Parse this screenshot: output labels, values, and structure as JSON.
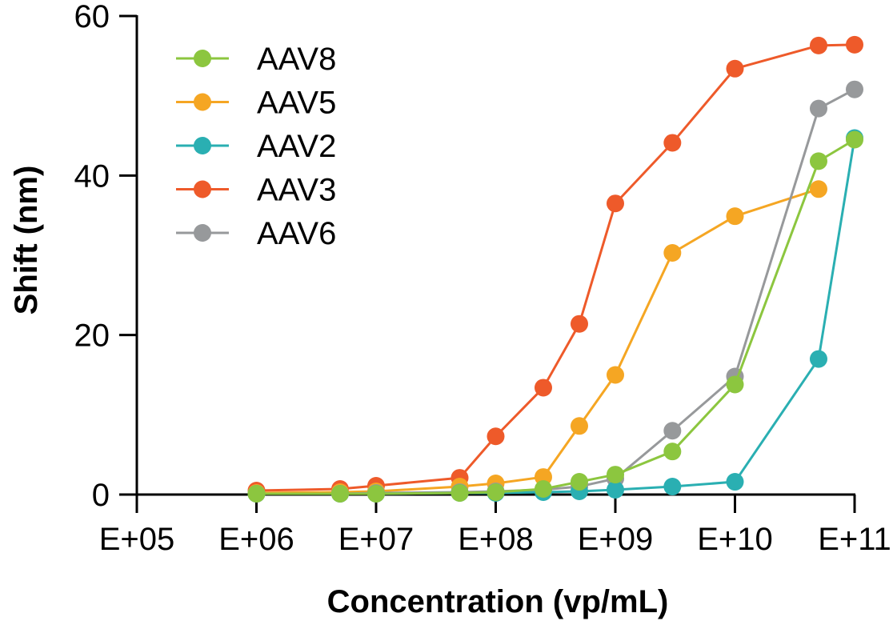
{
  "chart_data": {
    "type": "line",
    "title": "",
    "xlabel": "Concentration (vp/mL)",
    "ylabel": "Shift (nm)",
    "xscale": "log",
    "xlim": [
      100000,
      100000000000
    ],
    "ylim": [
      0,
      60
    ],
    "x_ticks": [
      {
        "value": 100000,
        "label": "E+05"
      },
      {
        "value": 1000000,
        "label": "E+06"
      },
      {
        "value": 10000000,
        "label": "E+07"
      },
      {
        "value": 100000000,
        "label": "E+08"
      },
      {
        "value": 1000000000,
        "label": "E+09"
      },
      {
        "value": 10000000000,
        "label": "E+10"
      },
      {
        "value": 100000000000,
        "label": "E+11"
      }
    ],
    "y_ticks": [
      {
        "value": 0,
        "label": "0"
      },
      {
        "value": 20,
        "label": "20"
      },
      {
        "value": 40,
        "label": "40"
      },
      {
        "value": 60,
        "label": "60"
      }
    ],
    "grid": false,
    "legend_position": "top-left",
    "x": [
      1000000,
      5000000,
      10000000,
      50000000,
      100000000,
      250000000,
      500000000,
      1000000000,
      3000000000,
      10000000000,
      50000000000,
      100000000000
    ],
    "series": [
      {
        "name": "AAV3",
        "color": "#EE5A2A",
        "values": [
          0.5,
          0.7,
          1.1,
          2.1,
          7.3,
          13.4,
          21.4,
          36.5,
          44.1,
          53.4,
          56.3,
          56.4
        ]
      },
      {
        "name": "AAV5",
        "color": "#F5A623",
        "values": [
          0.2,
          0.3,
          0.4,
          1.0,
          1.4,
          2.2,
          8.6,
          15.0,
          30.3,
          34.9,
          38.3,
          null
        ]
      },
      {
        "name": "AAV6",
        "color": "#97999B",
        "values": [
          0.1,
          0.1,
          0.2,
          0.3,
          0.4,
          0.6,
          1.0,
          2.0,
          8.0,
          14.8,
          48.4,
          50.8
        ]
      },
      {
        "name": "AAV2",
        "color": "#2AAFB2",
        "values": [
          0.1,
          0.1,
          0.1,
          0.2,
          0.2,
          0.3,
          0.4,
          0.6,
          1.0,
          1.6,
          17.0,
          44.7
        ]
      },
      {
        "name": "AAV8",
        "color": "#8CC63F",
        "values": [
          0.1,
          0.1,
          0.1,
          0.2,
          0.3,
          0.7,
          1.6,
          2.5,
          5.4,
          13.8,
          41.8,
          44.5
        ]
      }
    ],
    "legend": [
      {
        "name": "AAV8",
        "color": "#8CC63F"
      },
      {
        "name": "AAV5",
        "color": "#F5A623"
      },
      {
        "name": "AAV2",
        "color": "#2AAFB2"
      },
      {
        "name": "AAV3",
        "color": "#EE5A2A"
      },
      {
        "name": "AAV6",
        "color": "#97999B"
      }
    ]
  }
}
